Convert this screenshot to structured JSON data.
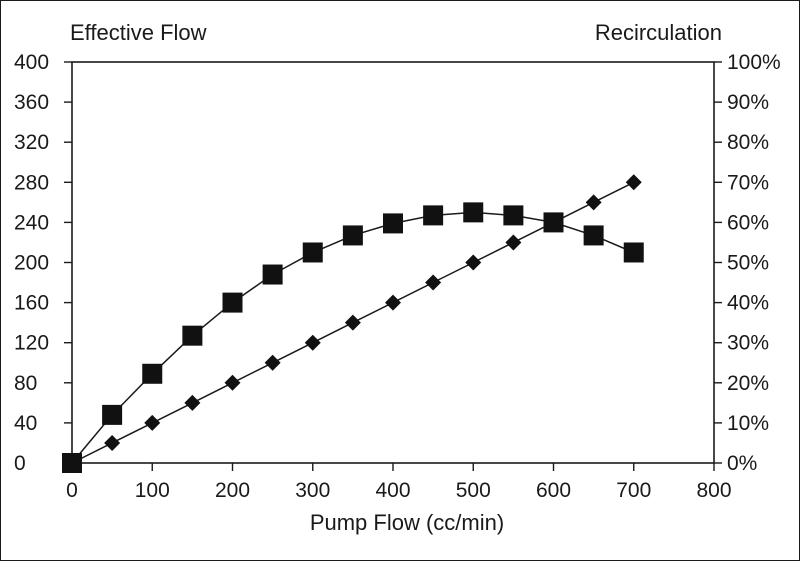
{
  "chart_data": {
    "type": "line",
    "left_axis_title": "Effective Flow",
    "right_axis_title": "Recirculation",
    "xlabel": "Pump Flow (cc/min)",
    "xlim": [
      0,
      800
    ],
    "ylim_left": [
      0,
      400
    ],
    "ylim_right": [
      0,
      100
    ],
    "x_ticks": [
      "0",
      "100",
      "200",
      "300",
      "400",
      "500",
      "600",
      "700",
      "800"
    ],
    "y_left_ticks": [
      "0",
      "40",
      "80",
      "120",
      "160",
      "200",
      "240",
      "280",
      "320",
      "360",
      "400"
    ],
    "y_right_ticks": [
      "0%",
      "10%",
      "20%",
      "30%",
      "40%",
      "50%",
      "60%",
      "70%",
      "80%",
      "90%",
      "100%"
    ],
    "grid": false,
    "series": [
      {
        "marker": "square",
        "axis": "left",
        "x": [
          0,
          50,
          100,
          150,
          200,
          250,
          300,
          350,
          400,
          450,
          500,
          550,
          600,
          650,
          700
        ],
        "y": [
          0,
          48,
          89,
          127,
          160,
          188,
          210,
          227,
          239,
          247,
          250,
          247,
          240,
          227,
          210
        ]
      },
      {
        "marker": "diamond",
        "axis": "right",
        "x": [
          0,
          50,
          100,
          150,
          200,
          250,
          300,
          350,
          400,
          450,
          500,
          550,
          600,
          650,
          700
        ],
        "y": [
          0,
          5,
          10,
          15,
          20,
          25,
          30,
          35,
          40,
          45,
          50,
          55,
          60,
          65,
          70
        ]
      }
    ]
  }
}
